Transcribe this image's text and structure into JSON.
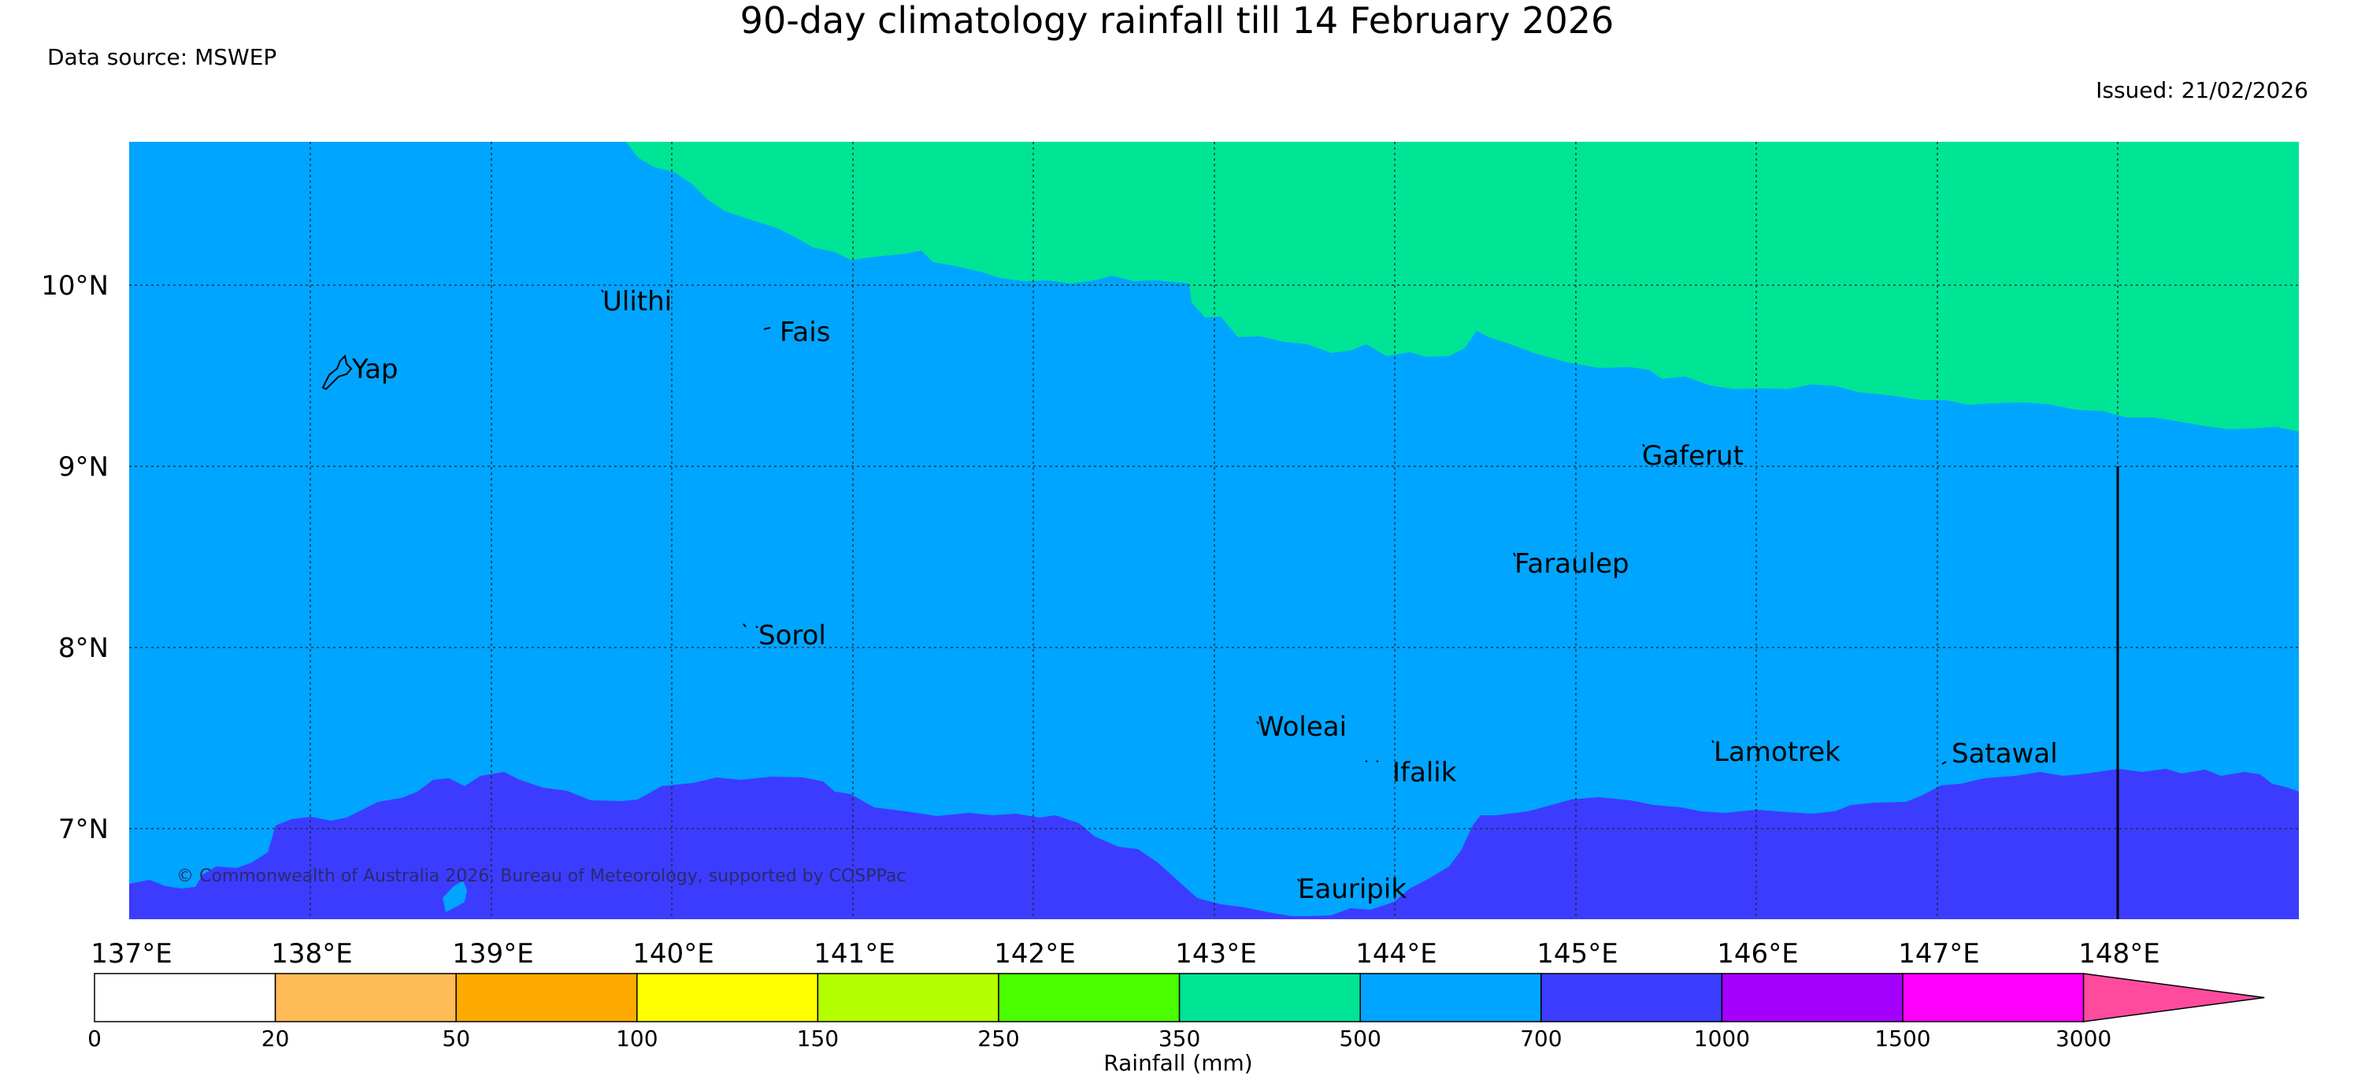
{
  "title": "90-day climatology rainfall till 14 February 2026",
  "data_source": "Data source: MSWEP",
  "issued": "Issued: 21/02/2026",
  "copyright": "© Commonwealth of Australia 2026, Bureau of Meteorology, supported by COSPPac",
  "lat_labels": [
    "10°N",
    "9°N",
    "8°N",
    "7°N"
  ],
  "lon_labels": [
    "137°E",
    "138°E",
    "139°E",
    "140°E",
    "141°E",
    "142°E",
    "143°E",
    "144°E",
    "145°E",
    "146°E",
    "147°E",
    "148°E"
  ],
  "places": [
    "Yap",
    "Ulithi",
    "Fais",
    "Gaferut",
    "Faraulep",
    "Sorol",
    "Woleai",
    "Ifalik",
    "Lamotrek",
    "Satawal",
    "Eauripik"
  ],
  "colorbar": {
    "label": "Rainfall (mm)",
    "ticks": [
      "0",
      "20",
      "50",
      "100",
      "150",
      "250",
      "350",
      "500",
      "700",
      "1000",
      "1500",
      "3000"
    ],
    "colors": [
      "#ffffff",
      "#ffbb55",
      "#ffaa00",
      "#ffff00",
      "#b4ff00",
      "#4cff00",
      "#00e496",
      "#00a5ff",
      "#3c3cff",
      "#a500ff",
      "#ff00ff",
      "#ff4b9e"
    ]
  },
  "map_colors": {
    "band_500_700": "#00e496",
    "band_700_1000": "#00a5ff",
    "band_1000_1500": "#3c3cff"
  }
}
